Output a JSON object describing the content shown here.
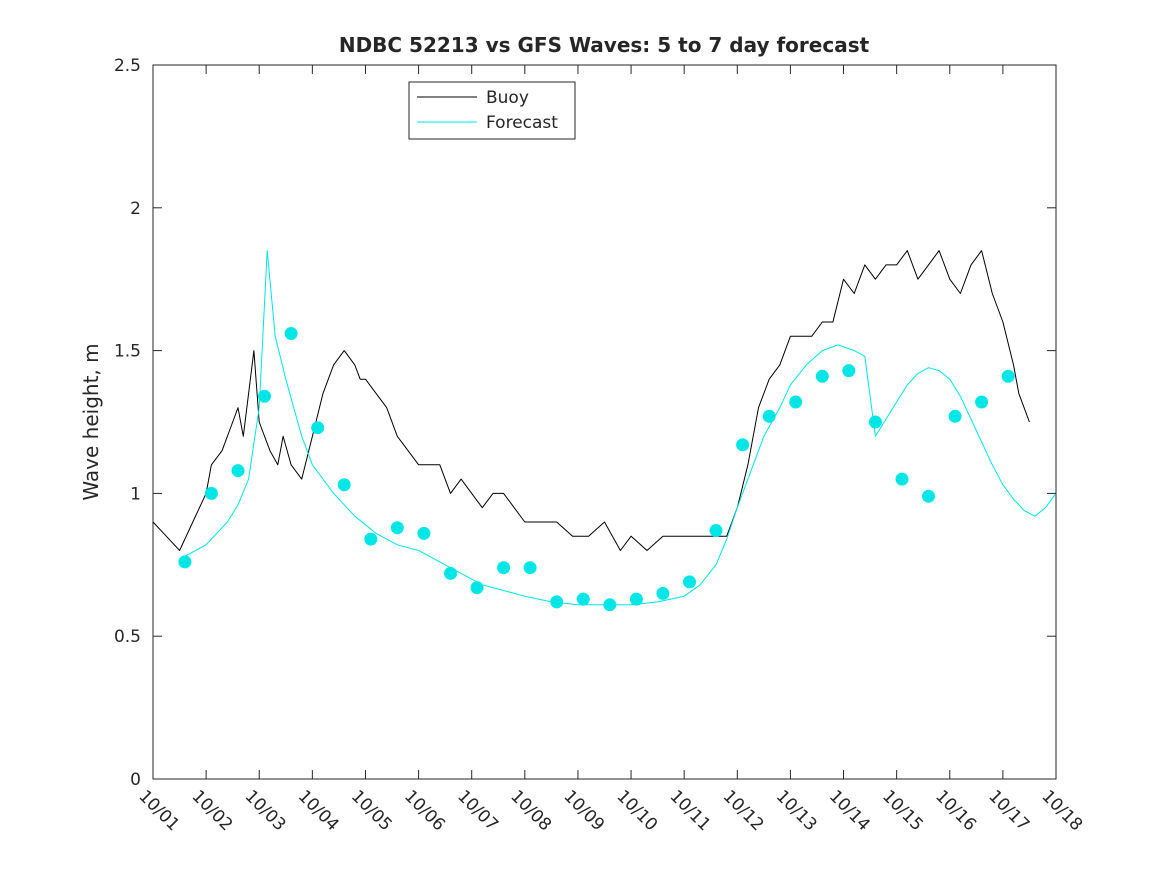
{
  "chart_data": {
    "type": "line",
    "title": "NDBC 52213 vs GFS Waves: 5 to 7 day forecast",
    "xlabel": "",
    "ylabel": "Wave height, m",
    "xlim": [
      0,
      17
    ],
    "ylim": [
      0,
      2.5
    ],
    "x_tick_labels": [
      "10/01",
      "10/02",
      "10/03",
      "10/04",
      "10/05",
      "10/06",
      "10/07",
      "10/08",
      "10/09",
      "10/10",
      "10/11",
      "10/12",
      "10/13",
      "10/14",
      "10/15",
      "10/16",
      "10/17",
      "10/18"
    ],
    "y_ticks": [
      0,
      0.5,
      1,
      1.5,
      2,
      2.5
    ],
    "y_tick_labels": [
      "0",
      "0.5",
      "1",
      "1.5",
      "2",
      "2.5"
    ],
    "legend": {
      "position": "top-center-left",
      "entries": [
        {
          "name": "Buoy",
          "color": "#000000"
        },
        {
          "name": "Forecast",
          "color": "#00e5e5"
        }
      ]
    },
    "series": [
      {
        "name": "Buoy",
        "color": "#000000",
        "x": [
          0.0,
          0.25,
          0.5,
          0.75,
          1.0,
          1.1,
          1.3,
          1.5,
          1.6,
          1.7,
          1.8,
          1.9,
          2.0,
          2.2,
          2.35,
          2.45,
          2.6,
          2.8,
          3.0,
          3.2,
          3.4,
          3.6,
          3.8,
          3.9,
          4.0,
          4.2,
          4.4,
          4.6,
          4.8,
          5.0,
          5.2,
          5.4,
          5.6,
          5.8,
          6.0,
          6.2,
          6.4,
          6.6,
          6.8,
          7.0,
          7.3,
          7.6,
          7.9,
          8.2,
          8.5,
          8.8,
          9.0,
          9.3,
          9.6,
          9.9,
          10.2,
          10.5,
          10.8,
          11.0,
          11.2,
          11.4,
          11.6,
          11.8,
          12.0,
          12.2,
          12.4,
          12.6,
          12.8,
          13.0,
          13.2,
          13.4,
          13.6,
          13.8,
          14.0,
          14.2,
          14.4,
          14.6,
          14.8,
          15.0,
          15.2,
          15.4,
          15.6,
          15.8,
          16.0,
          16.2,
          16.3,
          16.4,
          16.5
        ],
        "y": [
          0.9,
          0.85,
          0.8,
          0.9,
          1.0,
          1.1,
          1.15,
          1.25,
          1.3,
          1.2,
          1.35,
          1.5,
          1.25,
          1.15,
          1.1,
          1.2,
          1.1,
          1.05,
          1.2,
          1.35,
          1.45,
          1.5,
          1.45,
          1.4,
          1.4,
          1.35,
          1.3,
          1.2,
          1.15,
          1.1,
          1.1,
          1.1,
          1.0,
          1.05,
          1.0,
          0.95,
          1.0,
          1.0,
          0.95,
          0.9,
          0.9,
          0.9,
          0.85,
          0.85,
          0.9,
          0.8,
          0.85,
          0.8,
          0.85,
          0.85,
          0.85,
          0.85,
          0.85,
          0.95,
          1.1,
          1.3,
          1.4,
          1.45,
          1.55,
          1.55,
          1.55,
          1.6,
          1.6,
          1.75,
          1.7,
          1.8,
          1.75,
          1.8,
          1.8,
          1.85,
          1.75,
          1.8,
          1.85,
          1.75,
          1.7,
          1.8,
          1.85,
          1.7,
          1.6,
          1.45,
          1.35,
          1.3,
          1.25
        ]
      },
      {
        "name": "Forecast",
        "color": "#00e5e5",
        "x": [
          0.5,
          0.8,
          1.0,
          1.2,
          1.4,
          1.6,
          1.8,
          2.0,
          2.15,
          2.3,
          2.5,
          2.8,
          3.0,
          3.2,
          3.4,
          3.6,
          3.8,
          4.0,
          4.2,
          4.4,
          4.6,
          4.8,
          5.0,
          5.2,
          5.4,
          5.6,
          5.8,
          6.0,
          6.2,
          6.4,
          6.6,
          6.8,
          7.0,
          7.5,
          8.0,
          8.5,
          9.0,
          9.5,
          10.0,
          10.3,
          10.6,
          10.8,
          11.0,
          11.2,
          11.5,
          11.8,
          12.0,
          12.3,
          12.6,
          12.9,
          13.2,
          13.4,
          13.6,
          13.8,
          14.0,
          14.2,
          14.4,
          14.6,
          14.8,
          15.0,
          15.2,
          15.4,
          15.6,
          15.8,
          16.0,
          16.2,
          16.4,
          16.6,
          16.8,
          17.0
        ],
        "y": [
          0.77,
          0.8,
          0.82,
          0.86,
          0.9,
          0.96,
          1.05,
          1.3,
          1.85,
          1.55,
          1.4,
          1.2,
          1.1,
          1.05,
          1.0,
          0.96,
          0.92,
          0.89,
          0.86,
          0.84,
          0.82,
          0.81,
          0.8,
          0.78,
          0.76,
          0.74,
          0.72,
          0.7,
          0.68,
          0.67,
          0.66,
          0.65,
          0.64,
          0.62,
          0.61,
          0.61,
          0.61,
          0.62,
          0.64,
          0.68,
          0.75,
          0.84,
          0.95,
          1.05,
          1.2,
          1.3,
          1.38,
          1.45,
          1.5,
          1.52,
          1.5,
          1.48,
          1.2,
          1.26,
          1.32,
          1.38,
          1.42,
          1.44,
          1.43,
          1.4,
          1.34,
          1.26,
          1.18,
          1.1,
          1.03,
          0.98,
          0.94,
          0.92,
          0.95,
          1.0
        ]
      },
      {
        "name": "Forecast markers",
        "color": "#00e5e5",
        "x": [
          0.6,
          1.1,
          1.6,
          2.1,
          2.6,
          3.1,
          3.6,
          4.1,
          4.6,
          5.1,
          5.6,
          6.1,
          6.6,
          7.1,
          7.6,
          8.1,
          8.6,
          9.1,
          9.6,
          10.1,
          10.6,
          11.1,
          11.6,
          12.1,
          12.6,
          13.1,
          13.6,
          14.1,
          14.6,
          15.1,
          15.6,
          16.1
        ],
        "y": [
          0.76,
          1.0,
          1.08,
          1.34,
          1.56,
          1.23,
          1.03,
          0.84,
          0.88,
          0.86,
          0.72,
          0.67,
          0.74,
          0.74,
          0.62,
          0.63,
          0.61,
          0.63,
          0.65,
          0.69,
          0.87,
          1.17,
          1.27,
          1.32,
          1.41,
          1.43,
          1.25,
          1.05,
          0.99,
          1.27,
          1.32,
          1.41
        ]
      }
    ]
  }
}
